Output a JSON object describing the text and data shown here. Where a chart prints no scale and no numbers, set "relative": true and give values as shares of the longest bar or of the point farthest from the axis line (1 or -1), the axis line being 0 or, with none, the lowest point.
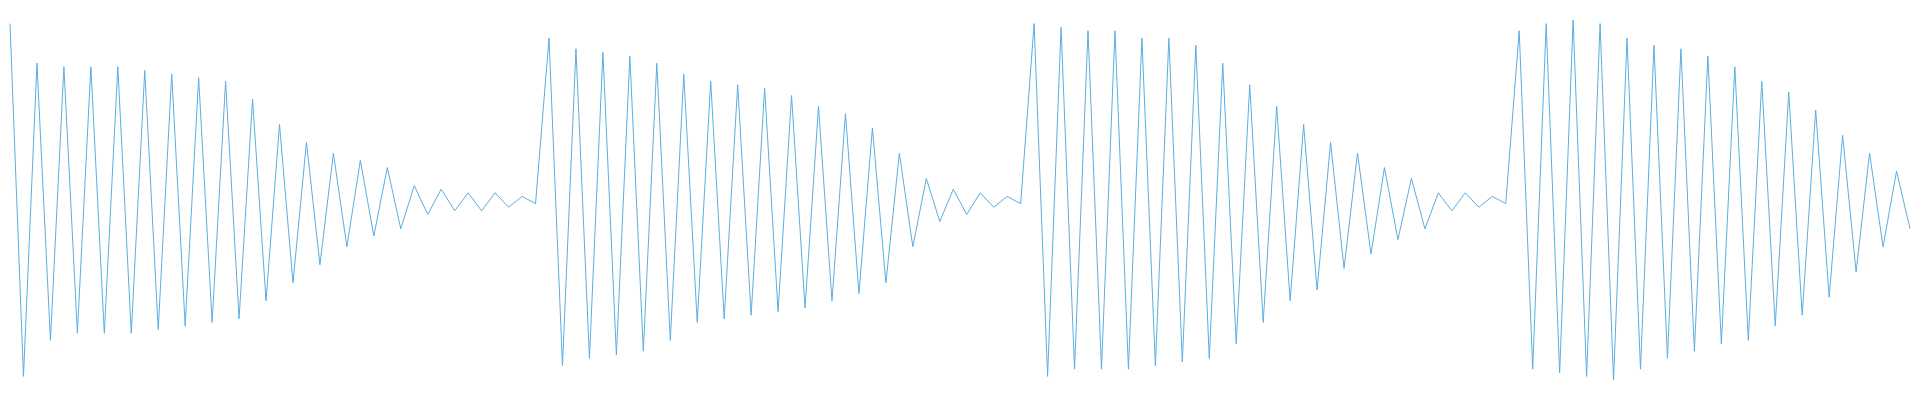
{
  "chart_data": {
    "type": "line",
    "relative": true,
    "categories": [
      null,
      null,
      null,
      null,
      null,
      null,
      null,
      null,
      null,
      null,
      null,
      null,
      null,
      null,
      null,
      null,
      null,
      null,
      null,
      null,
      null,
      null,
      null,
      null,
      null,
      null,
      null,
      null,
      null,
      null,
      null,
      null,
      null,
      null,
      null,
      null,
      null,
      null,
      null,
      null,
      null,
      null,
      null,
      null,
      null,
      null,
      null,
      null,
      null,
      null,
      null,
      null,
      null,
      null,
      null,
      null,
      null,
      null,
      null,
      null,
      null,
      null,
      null,
      null,
      null,
      null,
      null,
      null,
      null,
      null,
      null,
      null,
      null,
      null,
      null,
      null,
      null,
      null,
      null,
      null,
      null,
      null,
      null,
      null,
      null,
      null,
      null,
      null,
      null,
      null,
      null,
      null,
      null,
      null,
      null,
      null,
      null,
      null,
      null,
      null,
      null,
      null,
      null,
      null,
      null,
      null,
      null,
      null,
      null,
      null,
      null,
      null,
      null,
      null,
      null,
      null,
      null,
      null,
      null,
      null,
      null,
      null,
      null,
      null,
      null,
      null,
      null,
      null,
      null,
      null,
      null,
      null,
      null,
      null,
      null,
      null,
      null,
      null,
      null,
      null,
      null,
      null
    ],
    "series": [
      {
        "color": "#5dade2",
        "values": [
          0.99,
          0.01,
          0.88,
          0.11,
          0.87,
          0.13,
          0.87,
          0.13,
          0.87,
          0.13,
          0.86,
          0.14,
          0.85,
          0.15,
          0.84,
          0.16,
          0.83,
          0.17,
          0.78,
          0.22,
          0.71,
          0.27,
          0.66,
          0.32,
          0.63,
          0.37,
          0.61,
          0.4,
          0.59,
          0.42,
          0.54,
          0.46,
          0.53,
          0.47,
          0.52,
          0.47,
          0.52,
          0.48,
          0.51,
          0.49,
          0.95,
          0.04,
          0.92,
          0.06,
          0.91,
          0.07,
          0.9,
          0.08,
          0.88,
          0.11,
          0.85,
          0.16,
          0.83,
          0.17,
          0.82,
          0.18,
          0.81,
          0.19,
          0.79,
          0.2,
          0.76,
          0.22,
          0.74,
          0.24,
          0.7,
          0.27,
          0.63,
          0.37,
          0.56,
          0.44,
          0.53,
          0.46,
          0.52,
          0.48,
          0.51,
          0.49,
          0.99,
          0.01,
          0.98,
          0.03,
          0.97,
          0.03,
          0.97,
          0.03,
          0.95,
          0.04,
          0.95,
          0.05,
          0.93,
          0.06,
          0.88,
          0.1,
          0.82,
          0.16,
          0.76,
          0.22,
          0.71,
          0.25,
          0.66,
          0.31,
          0.63,
          0.35,
          0.59,
          0.39,
          0.56,
          0.42,
          0.52,
          0.47,
          0.52,
          0.48,
          0.51,
          0.49,
          0.97,
          0.03,
          0.99,
          0.02,
          1,
          0.01,
          0.99,
          0,
          0.95,
          0.03,
          0.93,
          0.06,
          0.92,
          0.08,
          0.9,
          0.1,
          0.87,
          0.11,
          0.83,
          0.15,
          0.8,
          0.18,
          0.75,
          0.23,
          0.68,
          0.3,
          0.63,
          0.37,
          0.58,
          0.42
        ]
      }
    ]
  }
}
